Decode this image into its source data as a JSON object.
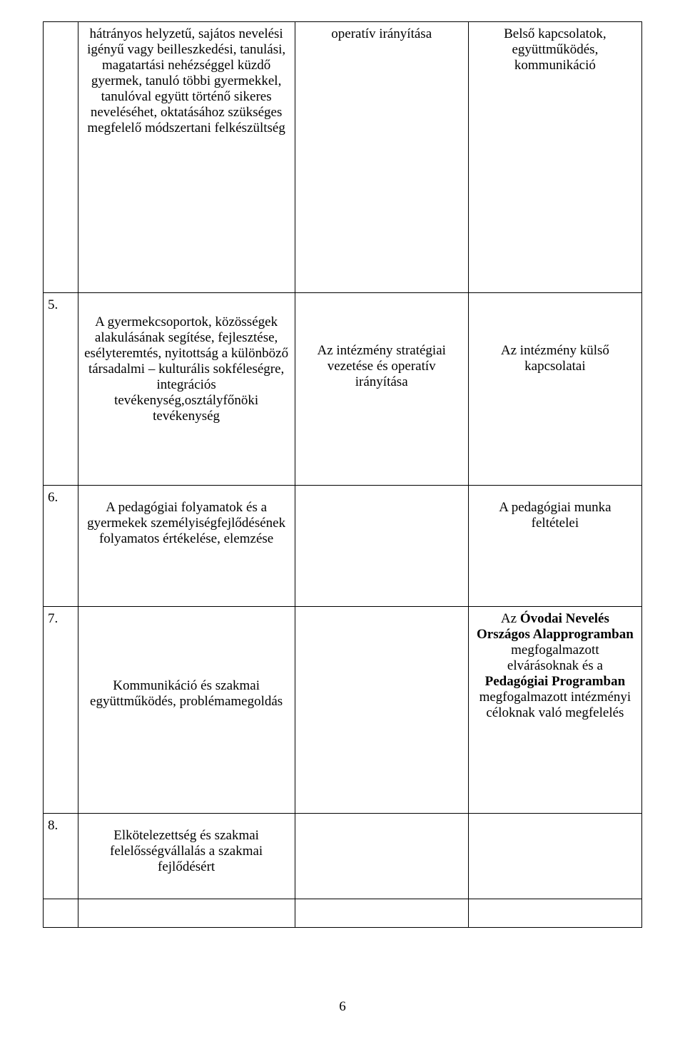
{
  "rows": [
    {
      "num": "",
      "col2": "hátrányos helyzetű, sajátos nevelési igényű vagy beilleszkedési, tanulási, magatartási nehézséggel küzdő gyermek, tanuló többi gyermekkel, tanulóval együtt történő sikeres neveléséhet, oktatásához szükséges megfelelő módszertani felkészültség",
      "col3": "operatív irányítása",
      "col4": "Belső kapcsolatok, együttműködés, kommunikáció"
    },
    {
      "num": "5.",
      "col2": "A gyermekcsoportok, közösségek alakulásának segítése, fejlesztése, esélyteremtés, nyitottság a különböző társadalmi – kulturális sokféleségre, integrációs tevékenység,osztályfőnöki tevékenység",
      "col3": "Az intézmény stratégiai vezetése és operatív irányítása",
      "col4": "Az intézmény külső kapcsolatai"
    },
    {
      "num": "6.",
      "col2": "A pedagógiai folyamatok és a gyermekek személyiségfejlődésének folyamatos értékelése, elemzése",
      "col3": "",
      "col4": "A pedagógiai munka feltételei"
    },
    {
      "num": "7.",
      "col2": "Kommunikáció és szakmai együttműködés, problémamegoldás",
      "col3": "",
      "col4_html": "Az <span class=\"bold\">Óvodai Nevelés Országos Alapprogramban</span> megfogalmazott elvárásoknak és a <span class=\"bold\">Pedagógiai Programban</span> megfogalmazott intézményi céloknak való megfelelés"
    },
    {
      "num": "8.",
      "col2": "Elkötelezettség és szakmai felelősségvállalás a szakmai fejlődésért",
      "col3": "",
      "col4": ""
    },
    {
      "num": "",
      "col2": "",
      "col3": "",
      "col4": ""
    }
  ],
  "page_number": "6"
}
